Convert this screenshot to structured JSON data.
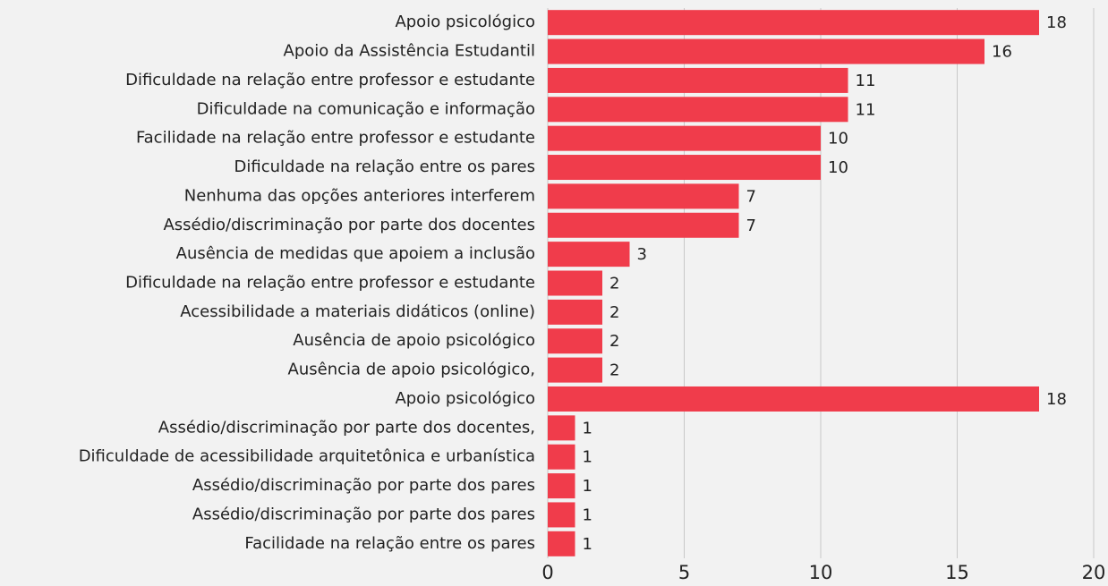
{
  "chart_data": {
    "type": "barh",
    "categories": [
      "Apoio psicológico",
      "Apoio da Assistência Estudantil",
      "Dificuldade na relação entre professor e estudante",
      "Dificuldade na comunicação e informação",
      "Facilidade na relação entre professor e estudante",
      "Dificuldade na relação entre os pares",
      "Nenhuma das opções anteriores interferem",
      "Assédio/discriminação por parte dos docentes",
      "Ausência de medidas que apoiem a inclusão",
      "Dificuldade na relação entre professor e estudante",
      "Acessibilidade a materiais didáticos (online)",
      "Ausência de apoio psicológico",
      "Ausência de apoio psicológico,",
      "Apoio psicológico",
      "Assédio/discriminação por parte dos docentes,",
      "Dificuldade de acessibilidade arquitetônica e urbanística",
      "Assédio/discriminação por parte dos pares",
      "Assédio/discriminação por parte dos pares",
      "Facilidade na relação entre os pares"
    ],
    "values": [
      18,
      16,
      11,
      11,
      10,
      10,
      7,
      7,
      3,
      2,
      2,
      2,
      2,
      18,
      1,
      1,
      1,
      1,
      1
    ],
    "color": "#f03c4b",
    "xlim": [
      0,
      20
    ],
    "xticks": [
      0,
      5,
      10,
      15,
      20
    ],
    "grid": true
  }
}
